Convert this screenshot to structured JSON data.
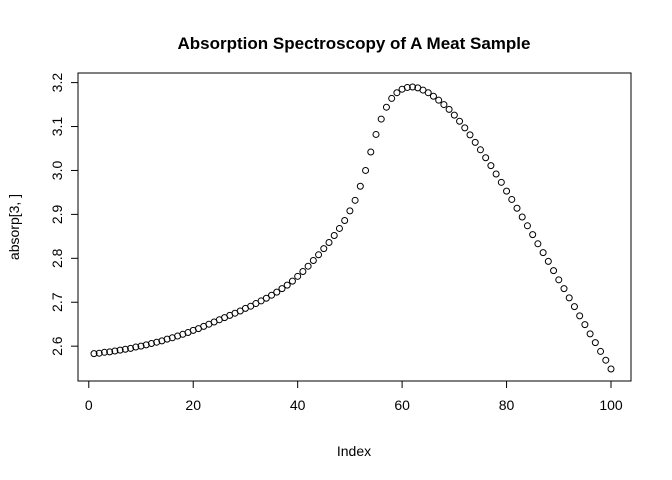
{
  "chart_data": {
    "type": "scatter",
    "title": "Absorption Spectroscopy of A Meat Sample",
    "xlabel": "Index",
    "ylabel": "absorp[3, ]",
    "xlim": [
      1,
      100
    ],
    "ylim": [
      2.548,
      3.19
    ],
    "xticks": [
      0,
      20,
      40,
      60,
      80,
      100
    ],
    "yticks": [
      2.6,
      2.7,
      2.8,
      2.9,
      3.0,
      3.1,
      3.2
    ],
    "xtick_labels": [
      "0",
      "20",
      "40",
      "60",
      "80",
      "100"
    ],
    "ytick_labels": [
      "2.6",
      "2.7",
      "2.8",
      "2.9",
      "3.0",
      "3.1",
      "3.2"
    ],
    "marker": "open-circle",
    "series": [
      {
        "x": [
          1,
          2,
          3,
          4,
          5,
          6,
          7,
          8,
          9,
          10,
          11,
          12,
          13,
          14,
          15,
          16,
          17,
          18,
          19,
          20,
          21,
          22,
          23,
          24,
          25,
          26,
          27,
          28,
          29,
          30,
          31,
          32,
          33,
          34,
          35,
          36,
          37,
          38,
          39,
          40,
          41,
          42,
          43,
          44,
          45,
          46,
          47,
          48,
          49,
          50,
          51,
          52,
          53,
          54,
          55,
          56,
          57,
          58,
          59,
          60,
          61,
          62,
          63,
          64,
          65,
          66,
          67,
          68,
          69,
          70,
          71,
          72,
          73,
          74,
          75,
          76,
          77,
          78,
          79,
          80,
          81,
          82,
          83,
          84,
          85,
          86,
          87,
          88,
          89,
          90,
          91,
          92,
          93,
          94,
          95,
          96,
          97,
          98,
          99,
          100
        ],
        "values": [
          2.583,
          2.584,
          2.586,
          2.587,
          2.589,
          2.591,
          2.593,
          2.595,
          2.598,
          2.6,
          2.603,
          2.606,
          2.609,
          2.612,
          2.616,
          2.619,
          2.623,
          2.627,
          2.631,
          2.636,
          2.64,
          2.645,
          2.65,
          2.655,
          2.66,
          2.665,
          2.67,
          2.675,
          2.68,
          2.686,
          2.691,
          2.697,
          2.703,
          2.709,
          2.716,
          2.723,
          2.731,
          2.739,
          2.748,
          2.759,
          2.77,
          2.782,
          2.795,
          2.808,
          2.822,
          2.836,
          2.852,
          2.868,
          2.886,
          2.908,
          2.932,
          2.964,
          3.0,
          3.042,
          3.082,
          3.117,
          3.144,
          3.164,
          3.177,
          3.185,
          3.189,
          3.19,
          3.188,
          3.183,
          3.177,
          3.169,
          3.16,
          3.15,
          3.139,
          3.126,
          3.112,
          3.097,
          3.081,
          3.064,
          3.047,
          3.029,
          3.011,
          2.992,
          2.973,
          2.953,
          2.934,
          2.914,
          2.894,
          2.874,
          2.854,
          2.833,
          2.813,
          2.793,
          2.772,
          2.751,
          2.731,
          2.71,
          2.69,
          2.669,
          2.649,
          2.628,
          2.608,
          2.588,
          2.568,
          2.548
        ]
      }
    ]
  }
}
